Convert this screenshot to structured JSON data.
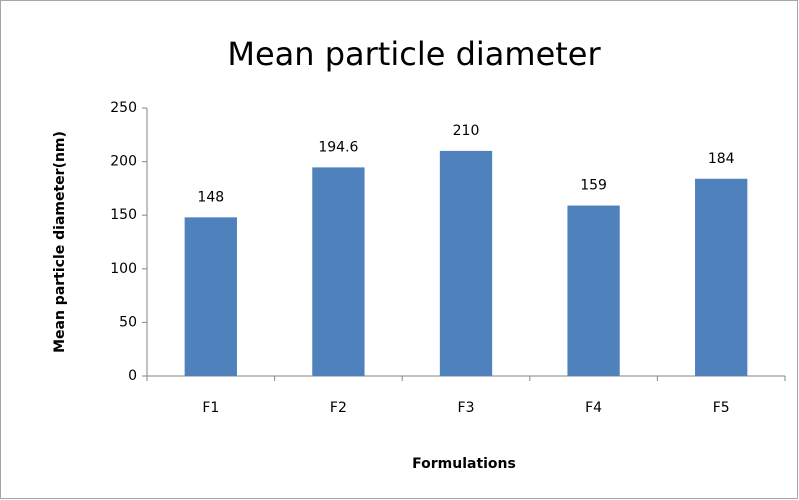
{
  "chart_data": {
    "type": "bar",
    "title": "Mean particle diameter",
    "y_label": "Mean particle diameter(nm)",
    "x_label": "Formulations",
    "categories": [
      "F1",
      "F2",
      "F3",
      "F4",
      "F5"
    ],
    "values": [
      148,
      194.6,
      210,
      159,
      184
    ],
    "color": "#4f81bd",
    "ylim": [
      0,
      250
    ],
    "yticks": [
      0,
      50,
      100,
      150,
      200,
      250
    ],
    "grid": false
  }
}
